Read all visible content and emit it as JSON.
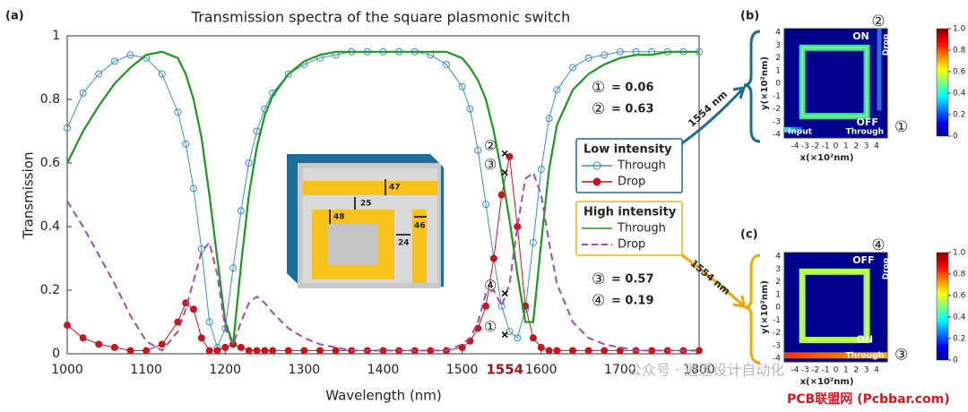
{
  "panel_labels": [
    "(a)",
    "(b)",
    "(c)"
  ],
  "chart_data": {
    "type": "line",
    "title": "Transmission spectra of the square plasmonic switch",
    "x_label": "Wavelength (nm)",
    "y_label": "Transmission",
    "xlim": [
      1000,
      1800
    ],
    "ylim": [
      0,
      1
    ],
    "xticks": [
      1000,
      1100,
      1200,
      1300,
      1400,
      1500,
      1600,
      1700,
      1800
    ],
    "yticks": [
      0,
      0.2,
      0.4,
      0.6,
      0.8,
      1
    ],
    "x": [
      1000,
      1020,
      1040,
      1060,
      1080,
      1100,
      1120,
      1140,
      1150,
      1160,
      1170,
      1180,
      1190,
      1200,
      1210,
      1220,
      1230,
      1240,
      1250,
      1260,
      1280,
      1300,
      1320,
      1340,
      1360,
      1380,
      1400,
      1420,
      1440,
      1460,
      1480,
      1500,
      1510,
      1520,
      1530,
      1540,
      1550,
      1560,
      1570,
      1580,
      1590,
      1600,
      1610,
      1620,
      1640,
      1660,
      1680,
      1700,
      1720,
      1740,
      1760,
      1780,
      1800
    ],
    "legend_groups": [
      {
        "title": "Low intensity",
        "color": "#1a6e8e"
      },
      {
        "title": "High intensity",
        "color": "#f5b400"
      }
    ],
    "series": [
      {
        "name": "Through",
        "color": "#3a8fd0",
        "style": "solid",
        "marker": "open",
        "values": [
          0.71,
          0.82,
          0.88,
          0.92,
          0.94,
          0.93,
          0.88,
          0.76,
          0.66,
          0.52,
          0.33,
          0.1,
          0.02,
          0.08,
          0.27,
          0.45,
          0.6,
          0.7,
          0.77,
          0.82,
          0.88,
          0.91,
          0.93,
          0.94,
          0.95,
          0.95,
          0.95,
          0.95,
          0.95,
          0.94,
          0.91,
          0.84,
          0.77,
          0.64,
          0.47,
          0.3,
          0.15,
          0.07,
          0.05,
          0.14,
          0.35,
          0.58,
          0.74,
          0.83,
          0.9,
          0.93,
          0.94,
          0.95,
          0.95,
          0.95,
          0.95,
          0.95,
          0.95
        ]
      },
      {
        "name": "Drop",
        "color": "#c8141c",
        "style": "solid",
        "marker": "filled",
        "values": [
          0.09,
          0.05,
          0.03,
          0.02,
          0.01,
          0.01,
          0.03,
          0.1,
          0.16,
          0.14,
          0.05,
          0.01,
          0.01,
          0.02,
          0.03,
          0.02,
          0.01,
          0.01,
          0.01,
          0.01,
          0.01,
          0.01,
          0.01,
          0.01,
          0.01,
          0.01,
          0.01,
          0.01,
          0.01,
          0.01,
          0.01,
          0.02,
          0.04,
          0.08,
          0.15,
          0.3,
          0.5,
          0.62,
          0.4,
          0.15,
          0.05,
          0.02,
          0.01,
          0.01,
          0.01,
          0.01,
          0.01,
          0.01,
          0.01,
          0.01,
          0.01,
          0.01,
          0.01
        ]
      },
      {
        "name": "Through",
        "color": "#1a9a1a",
        "style": "solid",
        "marker": "none",
        "values": [
          0.6,
          0.7,
          0.78,
          0.85,
          0.9,
          0.94,
          0.95,
          0.93,
          0.88,
          0.8,
          0.68,
          0.5,
          0.3,
          0.1,
          0.03,
          0.28,
          0.5,
          0.65,
          0.75,
          0.81,
          0.88,
          0.92,
          0.94,
          0.95,
          0.95,
          0.95,
          0.95,
          0.95,
          0.95,
          0.95,
          0.95,
          0.93,
          0.9,
          0.86,
          0.8,
          0.7,
          0.57,
          0.42,
          0.25,
          0.1,
          0.1,
          0.35,
          0.58,
          0.72,
          0.83,
          0.88,
          0.91,
          0.93,
          0.94,
          0.94,
          0.95,
          0.95,
          0.95
        ]
      },
      {
        "name": "Drop",
        "color": "#a54bb0",
        "style": "dashed",
        "marker": "none",
        "values": [
          0.48,
          0.4,
          0.31,
          0.22,
          0.12,
          0.04,
          0.01,
          0.07,
          0.14,
          0.23,
          0.32,
          0.35,
          0.25,
          0.08,
          0.03,
          0.1,
          0.16,
          0.18,
          0.16,
          0.13,
          0.08,
          0.05,
          0.03,
          0.02,
          0.01,
          0.01,
          0.01,
          0.01,
          0.01,
          0.01,
          0.01,
          0.03,
          0.05,
          0.1,
          0.19,
          0.2,
          0.15,
          0.22,
          0.4,
          0.55,
          0.57,
          0.5,
          0.35,
          0.22,
          0.1,
          0.05,
          0.03,
          0.02,
          0.01,
          0.01,
          0.01,
          0.01,
          0.01
        ]
      }
    ],
    "highlight": {
      "value": 1554,
      "label": "1554",
      "color": "#a0141c"
    },
    "readouts": [
      {
        "marker": "①",
        "value": 0.06,
        "value_label": "= 0.06"
      },
      {
        "marker": "②",
        "value": 0.63,
        "value_label": "= 0.63"
      },
      {
        "marker": "③",
        "value": 0.57,
        "value_label": "= 0.57"
      },
      {
        "marker": "④",
        "value": 0.19,
        "value_label": "= 0.19"
      }
    ]
  },
  "inset": {
    "dimensions": [
      "47",
      "25",
      "48",
      "24",
      "46"
    ]
  },
  "heatmap_axes": {
    "xticks": [
      "-4",
      "-3",
      "-2",
      "-1",
      "0",
      "1",
      "2",
      "3",
      "4"
    ],
    "yticks": [
      "4",
      "3",
      "2",
      "1",
      "0",
      "-1",
      "-2",
      "-3",
      "-4"
    ],
    "x_label": "x(×10²nm)",
    "y_label": "y(×10²nm)",
    "colorbar_ticks": [
      0,
      0.2,
      0.4,
      0.6,
      0.8,
      {
        "value": 1,
        "label": "1.0"
      }
    ]
  },
  "panels": [
    {
      "wavelength": "1554 nm",
      "top_marker": "②",
      "top_state": "ON",
      "drop": "Drop",
      "bottom_state": "OFF",
      "bottom_marker": "①",
      "input": "Input",
      "through": "Through"
    },
    {
      "wavelength": "1554 nm",
      "top_marker": "④",
      "top_state": "OFF",
      "drop": "Drop",
      "bottom_state": "ON",
      "bottom_marker": "③",
      "through": "Through"
    }
  ],
  "watermark": [
    "公众号 · 逍遥设计自动化",
    "PCB联盟网 (Pcbbar.com)"
  ]
}
